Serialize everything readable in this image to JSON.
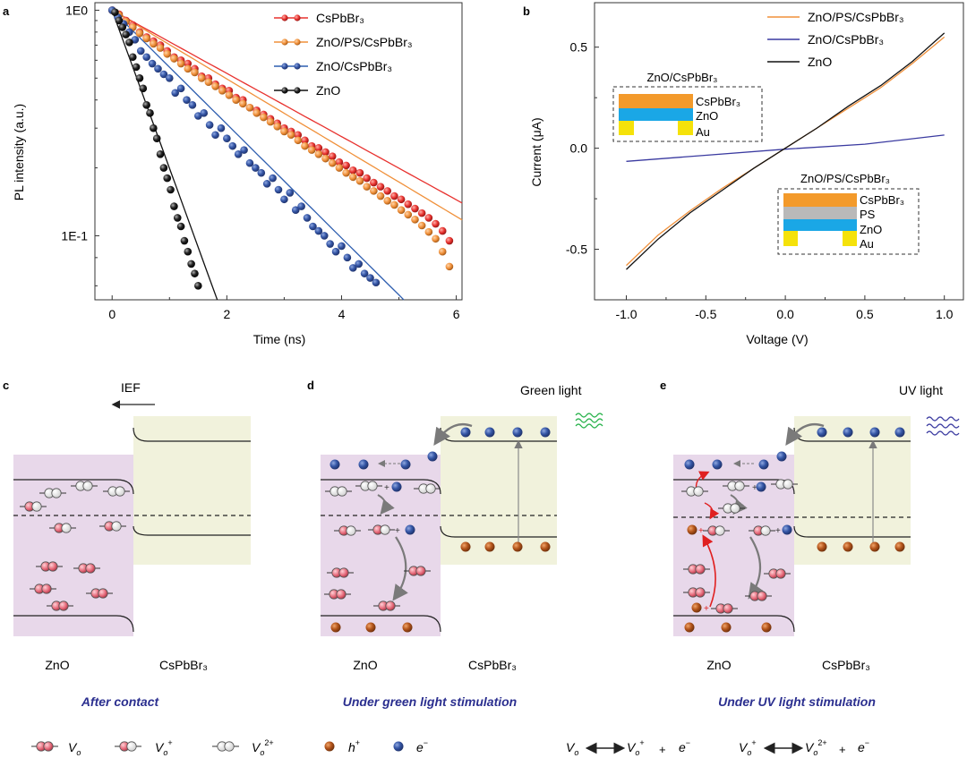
{
  "panels": {
    "a": {
      "label": "a",
      "chart_data": {
        "type": "scatter",
        "xlabel": "Time (ns)",
        "ylabel": "PL intensity (a.u.)",
        "xlim": [
          -0.3,
          6.1
        ],
        "ylim": [
          0.052,
          1.08
        ],
        "yscale": "log",
        "xticks": [
          "0",
          "2",
          "4",
          "6"
        ],
        "yticks": [
          "1E0",
          "1E-1"
        ],
        "legend_position": "top-right",
        "series": [
          {
            "name": "CsPbBr₃",
            "color": "#e8322f",
            "tau": 3.1,
            "x": [
              0.0,
              0.12,
              0.24,
              0.36,
              0.48,
              0.6,
              0.72,
              0.84,
              0.96,
              1.08,
              1.2,
              1.32,
              1.44,
              1.56,
              1.68,
              1.8,
              1.92,
              2.04,
              2.16,
              2.28,
              2.4,
              2.52,
              2.64,
              2.76,
              2.88,
              3.0,
              3.12,
              3.24,
              3.36,
              3.48,
              3.6,
              3.72,
              3.84,
              3.96,
              4.08,
              4.2,
              4.32,
              4.44,
              4.56,
              4.68,
              4.8,
              4.92,
              5.04,
              5.16,
              5.28,
              5.4,
              5.52,
              5.64,
              5.76,
              5.88
            ],
            "y": [
              1.0,
              0.96,
              0.9,
              0.86,
              0.8,
              0.76,
              0.73,
              0.7,
              0.66,
              0.62,
              0.6,
              0.58,
              0.55,
              0.51,
              0.5,
              0.47,
              0.45,
              0.44,
              0.41,
              0.4,
              0.37,
              0.36,
              0.345,
              0.33,
              0.315,
              0.3,
              0.29,
              0.28,
              0.265,
              0.25,
              0.245,
              0.235,
              0.225,
              0.212,
              0.205,
              0.195,
              0.19,
              0.18,
              0.172,
              0.165,
              0.158,
              0.15,
              0.145,
              0.138,
              0.132,
              0.126,
              0.12,
              0.113,
              0.105,
              0.095
            ]
          },
          {
            "name": "ZnO/PS/CsPbBr₃",
            "color": "#f0903a",
            "tau": 2.85,
            "x": [
              0.0,
              0.12,
              0.24,
              0.36,
              0.48,
              0.6,
              0.72,
              0.84,
              0.96,
              1.08,
              1.2,
              1.32,
              1.44,
              1.56,
              1.68,
              1.8,
              1.92,
              2.04,
              2.16,
              2.28,
              2.4,
              2.52,
              2.64,
              2.76,
              2.88,
              3.0,
              3.12,
              3.24,
              3.36,
              3.48,
              3.6,
              3.72,
              3.84,
              3.96,
              4.08,
              4.2,
              4.32,
              4.44,
              4.56,
              4.68,
              4.8,
              4.92,
              5.04,
              5.16,
              5.28,
              5.4,
              5.52,
              5.64,
              5.76,
              5.88
            ],
            "y": [
              1.0,
              0.95,
              0.89,
              0.84,
              0.79,
              0.75,
              0.71,
              0.68,
              0.64,
              0.61,
              0.58,
              0.55,
              0.53,
              0.5,
              0.48,
              0.46,
              0.44,
              0.42,
              0.4,
              0.385,
              0.37,
              0.35,
              0.335,
              0.32,
              0.305,
              0.29,
              0.28,
              0.265,
              0.25,
              0.24,
              0.23,
              0.22,
              0.21,
              0.2,
              0.19,
              0.182,
              0.175,
              0.165,
              0.158,
              0.15,
              0.143,
              0.137,
              0.13,
              0.124,
              0.118,
              0.111,
              0.104,
              0.097,
              0.085,
              0.073
            ]
          },
          {
            "name": "ZnO/CsPbBr₃",
            "color": "#2f5fb0",
            "tau": 1.72,
            "x": [
              0.0,
              0.1,
              0.2,
              0.3,
              0.4,
              0.5,
              0.6,
              0.7,
              0.8,
              0.9,
              1.0,
              1.1,
              1.2,
              1.3,
              1.4,
              1.5,
              1.6,
              1.7,
              1.8,
              1.9,
              2.0,
              2.1,
              2.2,
              2.3,
              2.4,
              2.5,
              2.6,
              2.7,
              2.8,
              2.9,
              3.0,
              3.1,
              3.2,
              3.3,
              3.4,
              3.5,
              3.6,
              3.7,
              3.8,
              3.9,
              4.0,
              4.1,
              4.2,
              4.3,
              4.4,
              4.5,
              4.6
            ],
            "y": [
              1.0,
              0.93,
              0.87,
              0.8,
              0.74,
              0.66,
              0.62,
              0.58,
              0.55,
              0.52,
              0.5,
              0.43,
              0.45,
              0.4,
              0.38,
              0.34,
              0.35,
              0.31,
              0.28,
              0.3,
              0.27,
              0.25,
              0.23,
              0.24,
              0.21,
              0.2,
              0.19,
              0.17,
              0.18,
              0.16,
              0.145,
              0.155,
              0.13,
              0.135,
              0.12,
              0.11,
              0.105,
              0.1,
              0.092,
              0.085,
              0.09,
              0.08,
              0.072,
              0.075,
              0.068,
              0.065,
              0.062
            ]
          },
          {
            "name": "ZnO",
            "color": "#111111",
            "tau": 0.62,
            "x": [
              0.05,
              0.12,
              0.18,
              0.24,
              0.3,
              0.36,
              0.42,
              0.48,
              0.54,
              0.6,
              0.66,
              0.72,
              0.78,
              0.84,
              0.9,
              0.96,
              1.02,
              1.08,
              1.14,
              1.2,
              1.26,
              1.32,
              1.38,
              1.44,
              1.5
            ],
            "y": [
              0.98,
              0.9,
              0.84,
              0.78,
              0.72,
              0.62,
              0.56,
              0.5,
              0.45,
              0.38,
              0.35,
              0.3,
              0.27,
              0.23,
              0.2,
              0.18,
              0.16,
              0.135,
              0.12,
              0.11,
              0.095,
              0.085,
              0.075,
              0.068,
              0.06
            ]
          }
        ]
      }
    },
    "b": {
      "label": "b",
      "chart_data": {
        "type": "line",
        "xlabel": "Voltage (V)",
        "ylabel": "Current (μA)",
        "xlim": [
          -1.2,
          1.12
        ],
        "ylim": [
          -0.75,
          0.72
        ],
        "xticks": [
          "-1.0",
          "-0.5",
          "0.0",
          "0.5",
          "1.0"
        ],
        "yticks": [
          "0.5",
          "0.0",
          "-0.5"
        ],
        "legend_position": "top-right",
        "series": [
          {
            "name": "ZnO/PS/CsPbBr₃",
            "color": "#f0903a",
            "x": [
              -1.0,
              -0.8,
              -0.6,
              -0.4,
              -0.2,
              0.0,
              0.2,
              0.4,
              0.6,
              0.8,
              1.0
            ],
            "y": [
              -0.58,
              -0.43,
              -0.31,
              -0.2,
              -0.1,
              0.0,
              0.1,
              0.2,
              0.3,
              0.42,
              0.55
            ]
          },
          {
            "name": "ZnO/CsPbBr₃",
            "color": "#3a3aa0",
            "x": [
              -1.0,
              -0.5,
              0.0,
              0.5,
              1.0
            ],
            "y": [
              -0.065,
              -0.035,
              -0.005,
              0.02,
              0.065
            ]
          },
          {
            "name": "ZnO",
            "color": "#111111",
            "x": [
              -1.0,
              -0.8,
              -0.6,
              -0.4,
              -0.2,
              0.0,
              0.2,
              0.4,
              0.6,
              0.8,
              1.0
            ],
            "y": [
              -0.6,
              -0.45,
              -0.32,
              -0.21,
              -0.1,
              0.0,
              0.1,
              0.21,
              0.31,
              0.43,
              0.57
            ]
          }
        ]
      },
      "inset1": {
        "title": "ZnO/CsPbBr₃",
        "layers": [
          "CsPbBr₃",
          "ZnO",
          "Au"
        ]
      },
      "inset2": {
        "title": "ZnO/PS/CsPbBr₃",
        "layers": [
          "CsPbBr₃",
          "PS",
          "ZnO",
          "Au"
        ]
      }
    },
    "c": {
      "label": "c",
      "ief": "IEF",
      "left": "ZnO",
      "right": "CsPbBr₃",
      "caption": "After contact"
    },
    "d": {
      "label": "d",
      "light": "Green light",
      "left": "ZnO",
      "right": "CsPbBr₃",
      "caption": "Under green light stimulation"
    },
    "e": {
      "label": "e",
      "light": "UV light",
      "left": "ZnO",
      "right": "CsPbBr₃",
      "caption": "Under UV light stimulation"
    }
  },
  "legend": {
    "v": "V",
    "o": "o",
    "plus": "+",
    "twoplus": "2+",
    "h": "h",
    "hsup": "+",
    "e": "e",
    "esup": "−",
    "pm": "+"
  },
  "colors": {
    "red": "#e8322f",
    "orange": "#f0903a",
    "blue": "#2f5fb0",
    "black": "#111111",
    "purple_bg": "#e8d8ea",
    "yellow_bg": "#f1f2dc",
    "caption": "#2b2f8f",
    "electron": "#2c4a9a",
    "hole": "#b5561c",
    "vacancy": "#e66a7a",
    "inset_orange": "#f39a2b",
    "inset_cyan": "#1aa7e6",
    "inset_gray": "#b9b9b9",
    "inset_gold": "#f5e20a"
  }
}
